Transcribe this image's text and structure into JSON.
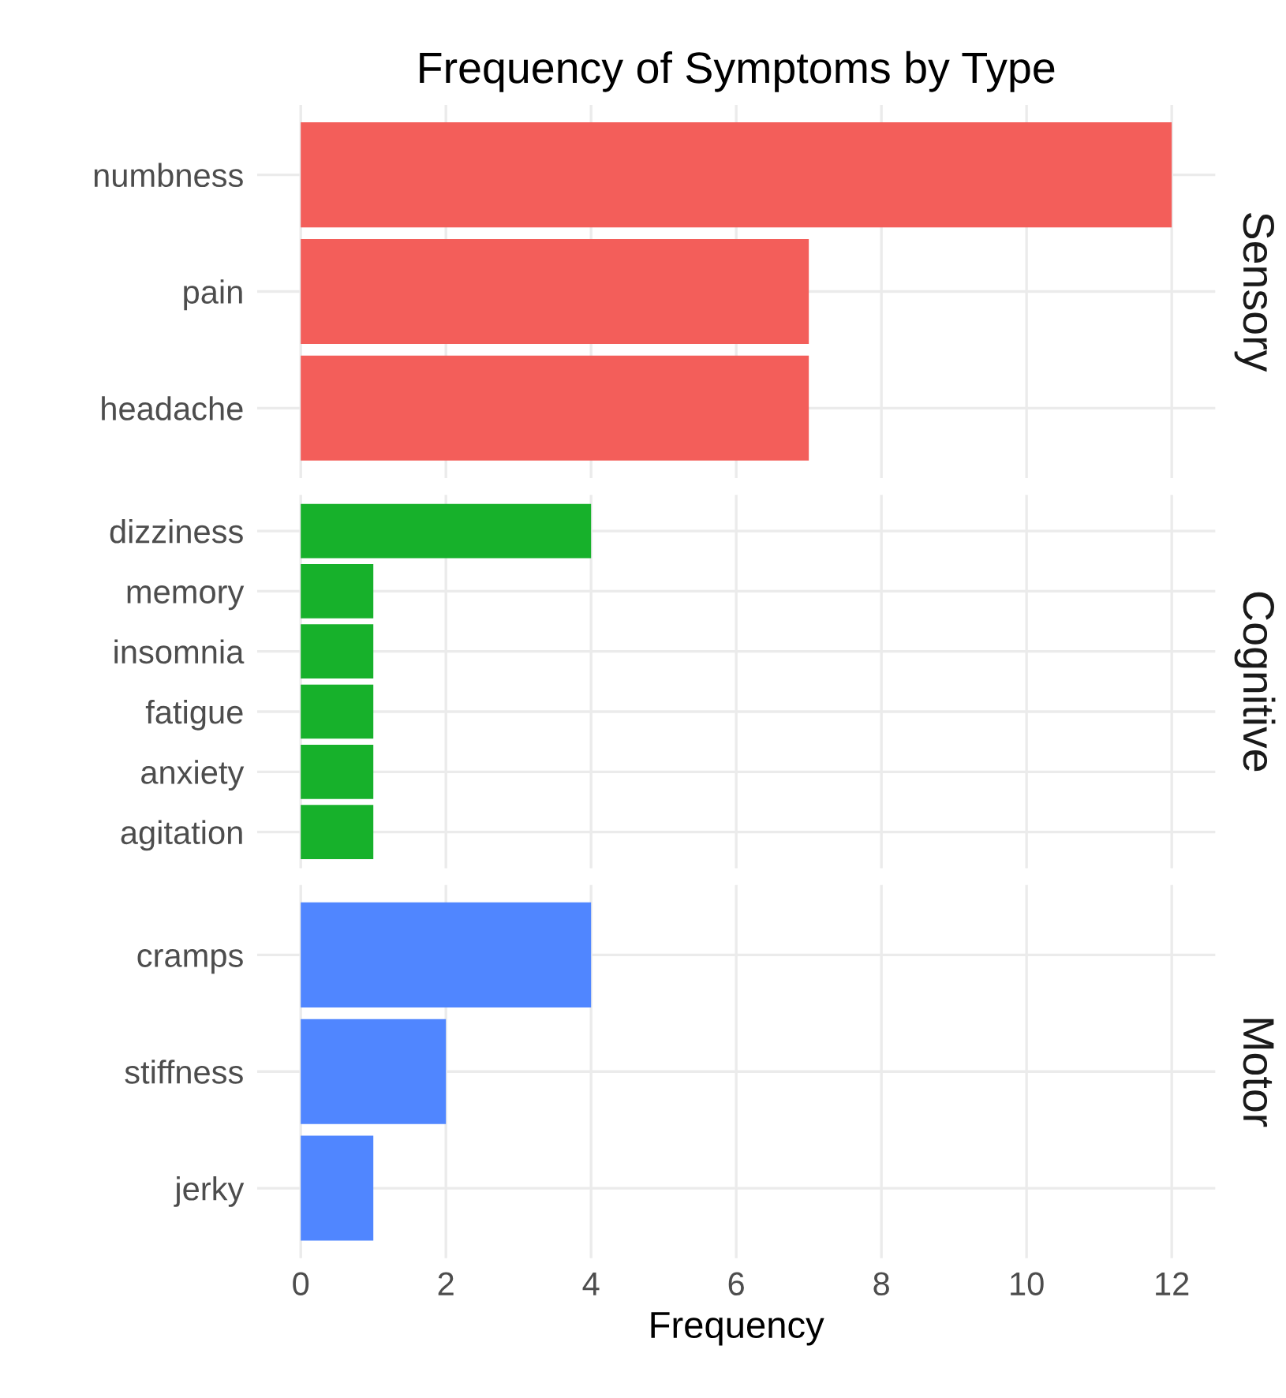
{
  "chart_data": [
    {
      "type": "bar",
      "orientation": "horizontal",
      "title": "Frequency of Symptoms by Type",
      "y2label": "Sensory",
      "categories": [
        "numbness",
        "pain",
        "headache"
      ],
      "values": [
        12,
        7,
        7
      ],
      "color": "#f35e5a",
      "xlim": [
        -0.6,
        12.6
      ],
      "xticks": [
        0,
        2,
        4,
        6,
        8,
        10,
        12
      ],
      "grid": true,
      "tick_labels": "y"
    },
    {
      "type": "bar",
      "orientation": "horizontal",
      "y2label": "Cognitive",
      "categories": [
        "dizziness",
        "memory",
        "insomnia",
        "fatigue",
        "anxiety",
        "agitation"
      ],
      "values": [
        4,
        1,
        1,
        1,
        1,
        1
      ],
      "color": "#17b12b",
      "xlim": [
        -0.6,
        12.6
      ],
      "xticks": [
        0,
        2,
        4,
        6,
        8,
        10,
        12
      ],
      "grid": true,
      "tick_labels": "y"
    },
    {
      "type": "bar",
      "orientation": "horizontal",
      "y2label": "Motor",
      "xlabel": "Frequency",
      "categories": [
        "cramps",
        "stiffness",
        "jerky"
      ],
      "values": [
        4,
        2,
        1
      ],
      "color": "#5086ff",
      "xlim": [
        -0.6,
        12.6
      ],
      "xticks": [
        0,
        2,
        4,
        6,
        8,
        10,
        12
      ],
      "grid": true
    }
  ]
}
